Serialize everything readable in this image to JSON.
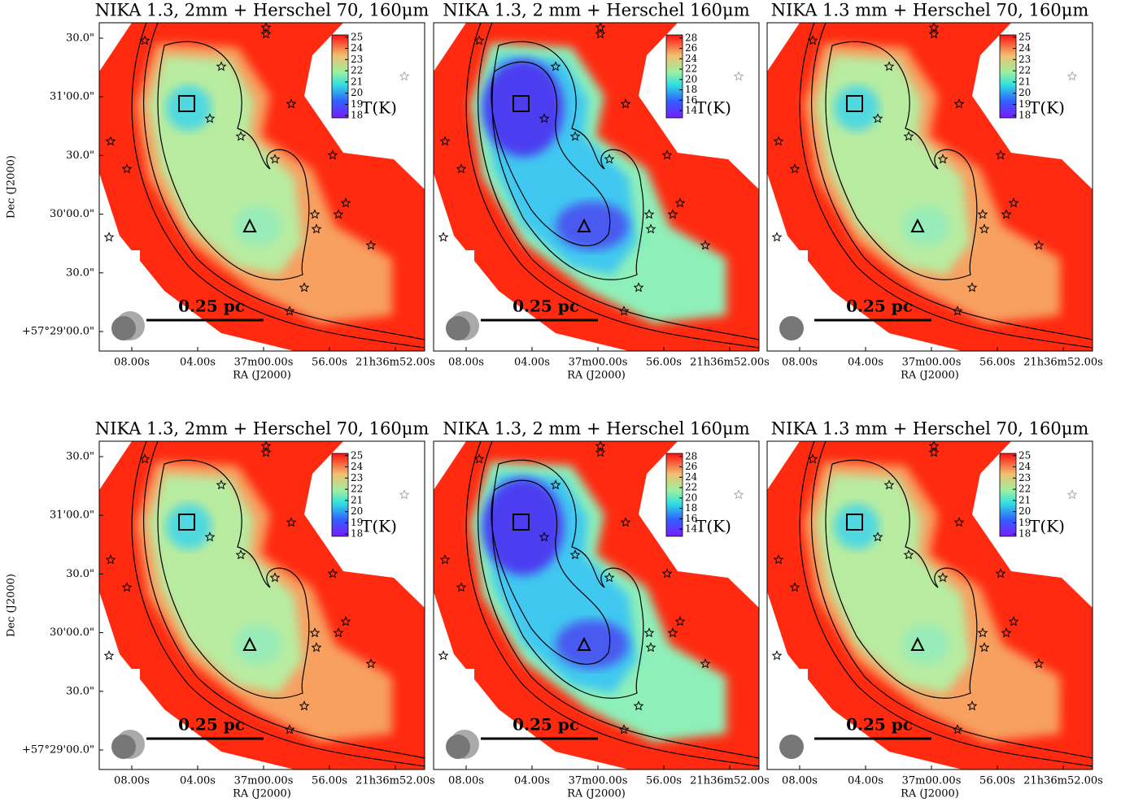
{
  "chart_data": [
    {
      "type": "heatmap",
      "title": "NIKA 1.3, 2mm + Herschel 70, 160μm",
      "xlabel": "RA (J2000)",
      "xticks": [
        "08.00s",
        "04.00s",
        "37m00.00s",
        "56.00s",
        "21h36m52.00s"
      ],
      "ylabel": "Dec (J2000)",
      "yticks": [
        "+57°29'00.0\"",
        "30.0\"",
        "30'00.0\"",
        "30.0\"",
        "31'00.0\"",
        "30.0\""
      ],
      "colorbar_label": "T(K)",
      "clim": [
        17.8,
        25.2
      ],
      "cticks": [
        18,
        19,
        20,
        21,
        22,
        23,
        24,
        25
      ],
      "scale_bar": "0.25 pc"
    },
    {
      "type": "heatmap",
      "title": "NIKA 1.3, 2 mm + Herschel 160μm",
      "xlabel": "RA (J2000)",
      "xticks": [
        "08.00s",
        "04.00s",
        "37m00.00s",
        "56.00s",
        "21h36m52.00s"
      ],
      "colorbar_label": "T(K)",
      "clim": [
        12.6,
        28.6
      ],
      "cticks": [
        14,
        16,
        18,
        20,
        22,
        24,
        26,
        28
      ],
      "scale_bar": "0.25 pc"
    },
    {
      "type": "heatmap",
      "title": "NIKA 1.3 mm + Herschel 70, 160μm",
      "xlabel": "RA (J2000)",
      "xticks": [
        "08.00s",
        "04.00s",
        "37m00.00s",
        "56.00s",
        "21h36m52.00s"
      ],
      "colorbar_label": "T(K)",
      "clim": [
        17.8,
        25.2
      ],
      "cticks": [
        18,
        19,
        20,
        21,
        22,
        23,
        24,
        25
      ],
      "scale_bar": "0.25 pc"
    },
    {
      "type": "heatmap",
      "title": "NIKA 1.3, 2mm + Herschel 70, 160μm",
      "xlabel": "RA (J2000)",
      "xticks": [
        "08.00s",
        "04.00s",
        "37m00.00s",
        "56.00s",
        "21h36m52.00s"
      ],
      "ylabel": "Dec (J2000)",
      "yticks": [
        "+57°29'00.0\"",
        "30.0\"",
        "30'00.0\"",
        "30.0\"",
        "31'00.0\"",
        "30.0\""
      ],
      "colorbar_label": "T(K)",
      "clim": [
        17.8,
        25.2
      ],
      "cticks": [
        18,
        19,
        20,
        21,
        22,
        23,
        24,
        25
      ],
      "scale_bar": "0.25 pc"
    },
    {
      "type": "heatmap",
      "title": "NIKA 1.3, 2 mm + Herschel 160μm",
      "xlabel": "RA (J2000)",
      "xticks": [
        "08.00s",
        "04.00s",
        "37m00.00s",
        "56.00s",
        "21h36m52.00s"
      ],
      "colorbar_label": "T(K)",
      "clim": [
        12.6,
        28.6
      ],
      "cticks": [
        14,
        16,
        18,
        20,
        22,
        24,
        26,
        28
      ],
      "scale_bar": "0.25 pc"
    },
    {
      "type": "heatmap",
      "title": "NIKA 1.3 mm + Herschel 70, 160μm",
      "xlabel": "RA (J2000)",
      "xticks": [
        "08.00s",
        "04.00s",
        "37m00.00s",
        "56.00s",
        "21h36m52.00s"
      ],
      "colorbar_label": "T(K)",
      "clim": [
        17.8,
        25.2
      ],
      "cticks": [
        18,
        19,
        20,
        21,
        22,
        23,
        24,
        25
      ],
      "scale_bar": "0.25 pc"
    }
  ]
}
